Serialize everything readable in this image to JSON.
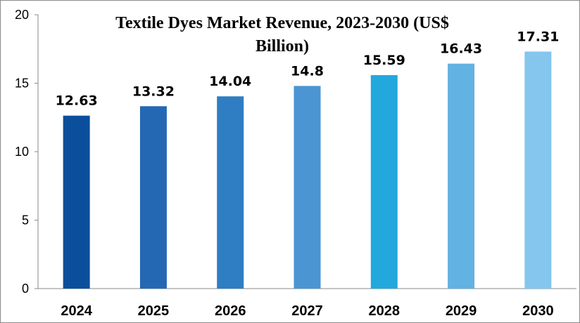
{
  "chart_data": {
    "type": "bar",
    "title_lines": [
      "Textile Dyes Market Revenue, 2023-2030 (US$",
      "Billion)"
    ],
    "xlabel": "",
    "ylabel": "",
    "categories": [
      "2024",
      "2025",
      "2026",
      "2027",
      "2028",
      "2029",
      "2030"
    ],
    "values": [
      12.63,
      13.32,
      14.04,
      14.8,
      15.59,
      16.43,
      17.31
    ],
    "data_labels": [
      "12.63",
      "13.32",
      "14.04",
      "14.8",
      "15.59",
      "16.43",
      "17.31"
    ],
    "bar_colors": [
      "#0B4F9C",
      "#2468B4",
      "#2F7DC2",
      "#4A95D2",
      "#22A8DD",
      "#62B2E2",
      "#84C6EE"
    ],
    "ylim": [
      0,
      20
    ],
    "yticks": [
      0,
      5,
      10,
      15,
      20
    ],
    "grid": false,
    "legend": "none"
  }
}
